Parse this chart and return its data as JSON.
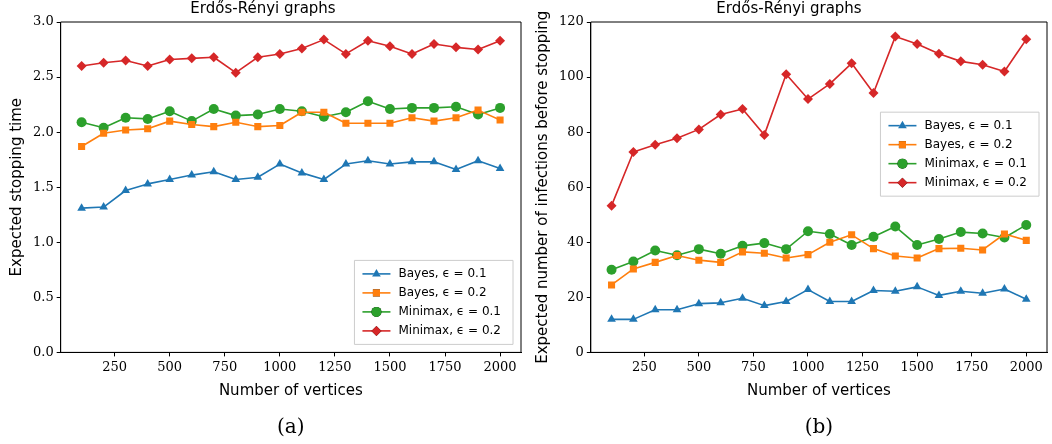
{
  "chart_data": [
    {
      "type": "line",
      "title": "Erdős-Rényi graphs",
      "xlabel": "Number of vertices",
      "ylabel": "Expected stopping time",
      "x": [
        100,
        200,
        300,
        400,
        500,
        600,
        700,
        800,
        900,
        1000,
        1100,
        1200,
        1300,
        1400,
        1500,
        1600,
        1700,
        1800,
        1900,
        2000
      ],
      "series": [
        {
          "name": "Bayes, ϵ = 0.1",
          "color": "#1f77b4",
          "marker": "triangle",
          "values": [
            1.31,
            1.32,
            1.47,
            1.53,
            1.57,
            1.61,
            1.64,
            1.57,
            1.59,
            1.71,
            1.63,
            1.57,
            1.71,
            1.74,
            1.71,
            1.73,
            1.73,
            1.66,
            1.74,
            1.67
          ]
        },
        {
          "name": "Bayes, ϵ = 0.2",
          "color": "#ff7f0e",
          "marker": "square",
          "values": [
            1.87,
            1.99,
            2.02,
            2.03,
            2.1,
            2.07,
            2.05,
            2.09,
            2.05,
            2.06,
            2.18,
            2.18,
            2.08,
            2.08,
            2.08,
            2.13,
            2.1,
            2.13,
            2.2,
            2.11
          ]
        },
        {
          "name": "Minimax, ϵ = 0.1",
          "color": "#2ca02c",
          "marker": "circle",
          "values": [
            2.09,
            2.04,
            2.13,
            2.12,
            2.19,
            2.1,
            2.21,
            2.15,
            2.16,
            2.21,
            2.19,
            2.14,
            2.18,
            2.28,
            2.21,
            2.22,
            2.22,
            2.23,
            2.16,
            2.22
          ]
        },
        {
          "name": "Minimax, ϵ = 0.2",
          "color": "#d62728",
          "marker": "diamond",
          "values": [
            2.6,
            2.63,
            2.65,
            2.6,
            2.66,
            2.67,
            2.68,
            2.54,
            2.68,
            2.71,
            2.76,
            2.84,
            2.71,
            2.83,
            2.78,
            2.71,
            2.8,
            2.77,
            2.75,
            2.83
          ]
        }
      ],
      "xlim": [
        5,
        2095
      ],
      "xticks": [
        250,
        500,
        750,
        1000,
        1250,
        1500,
        1750,
        2000
      ],
      "ylim": [
        0,
        3
      ],
      "yticks": [
        {
          "value": 0,
          "label": "0.0"
        },
        {
          "value": 0.5,
          "label": "0.5"
        },
        {
          "value": 1,
          "label": "1.0"
        },
        {
          "value": 1.5,
          "label": "1.5"
        },
        {
          "value": 2,
          "label": "2.0"
        },
        {
          "value": 2.5,
          "label": "2.5"
        },
        {
          "value": 3,
          "label": "3.0"
        }
      ],
      "grid": false,
      "legend": "bottom right",
      "annotations": [
        "(a)"
      ]
    },
    {
      "type": "line",
      "title": "Erdős-Rényi graphs",
      "xlabel": "Number of vertices",
      "ylabel": "Expected number of infections before stopping",
      "x": [
        100,
        200,
        300,
        400,
        500,
        600,
        700,
        800,
        900,
        1000,
        1100,
        1200,
        1300,
        1400,
        1500,
        1600,
        1700,
        1800,
        1900,
        2000
      ],
      "series": [
        {
          "name": "Bayes, ϵ = 0.1",
          "color": "#1f77b4",
          "marker": "triangle",
          "values": [
            12,
            12,
            15.5,
            15.5,
            17.7,
            18,
            19.7,
            17,
            18.5,
            22.8,
            18.5,
            18.5,
            22.5,
            22.2,
            23.8,
            20.7,
            22.2,
            21.5,
            23,
            19.3
          ]
        },
        {
          "name": "Bayes, ϵ = 0.2",
          "color": "#ff7f0e",
          "marker": "square",
          "values": [
            24.5,
            30.3,
            32.7,
            35.2,
            33.5,
            32.7,
            36.5,
            36,
            34.3,
            35.5,
            40,
            42.7,
            37.7,
            35,
            34.3,
            37.7,
            37.8,
            37.2,
            43,
            40.7
          ]
        },
        {
          "name": "Minimax, ϵ = 0.1",
          "color": "#2ca02c",
          "marker": "circle",
          "values": [
            30,
            33,
            37,
            35.3,
            37.5,
            35.8,
            38.7,
            39.7,
            37.5,
            44,
            43,
            39,
            42,
            45.7,
            39,
            41.2,
            43.7,
            43.2,
            41.7,
            46.3
          ]
        },
        {
          "name": "Minimax, ϵ = 0.2",
          "color": "#d62728",
          "marker": "diamond",
          "values": [
            53.3,
            72.8,
            75.4,
            77.8,
            81,
            86.4,
            88.4,
            79,
            101,
            92,
            97.5,
            105,
            94.2,
            114.7,
            112,
            108.5,
            105.7,
            104.5,
            102,
            113.7
          ]
        }
      ],
      "xlim": [
        5,
        2095
      ],
      "xticks": [
        250,
        500,
        750,
        1000,
        1250,
        1500,
        1750,
        2000
      ],
      "ylim": [
        0,
        120
      ],
      "yticks": [
        0,
        20,
        40,
        60,
        80,
        100,
        120
      ],
      "grid": false,
      "legend": "right",
      "annotations": [
        "(b)"
      ]
    }
  ]
}
